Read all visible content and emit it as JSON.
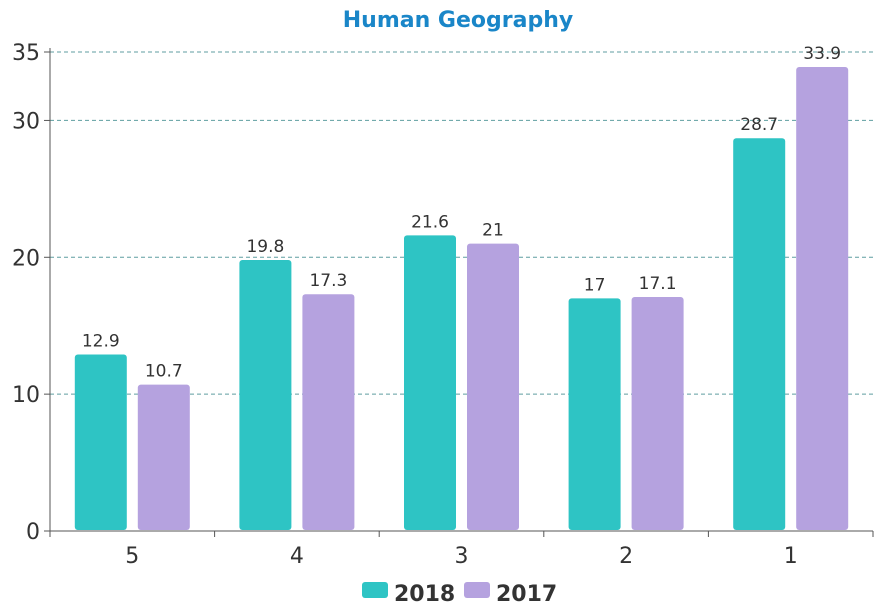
{
  "chart_data": {
    "type": "bar",
    "title": "Human Geography",
    "xlabel": "",
    "ylabel": "",
    "categories": [
      "5",
      "4",
      "3",
      "2",
      "1"
    ],
    "series": [
      {
        "name": "2018",
        "color": "#2ec4c4",
        "values": [
          12.9,
          19.8,
          21.6,
          17,
          28.7
        ]
      },
      {
        "name": "2017",
        "color": "#b5a2df",
        "values": [
          10.7,
          17.3,
          21,
          17.1,
          33.9
        ]
      }
    ],
    "yticks": [
      0,
      10,
      20,
      30,
      35
    ],
    "ylim": [
      0,
      35
    ],
    "grid": true,
    "legend_position": "bottom-center",
    "title_color": "#1a86c8"
  }
}
